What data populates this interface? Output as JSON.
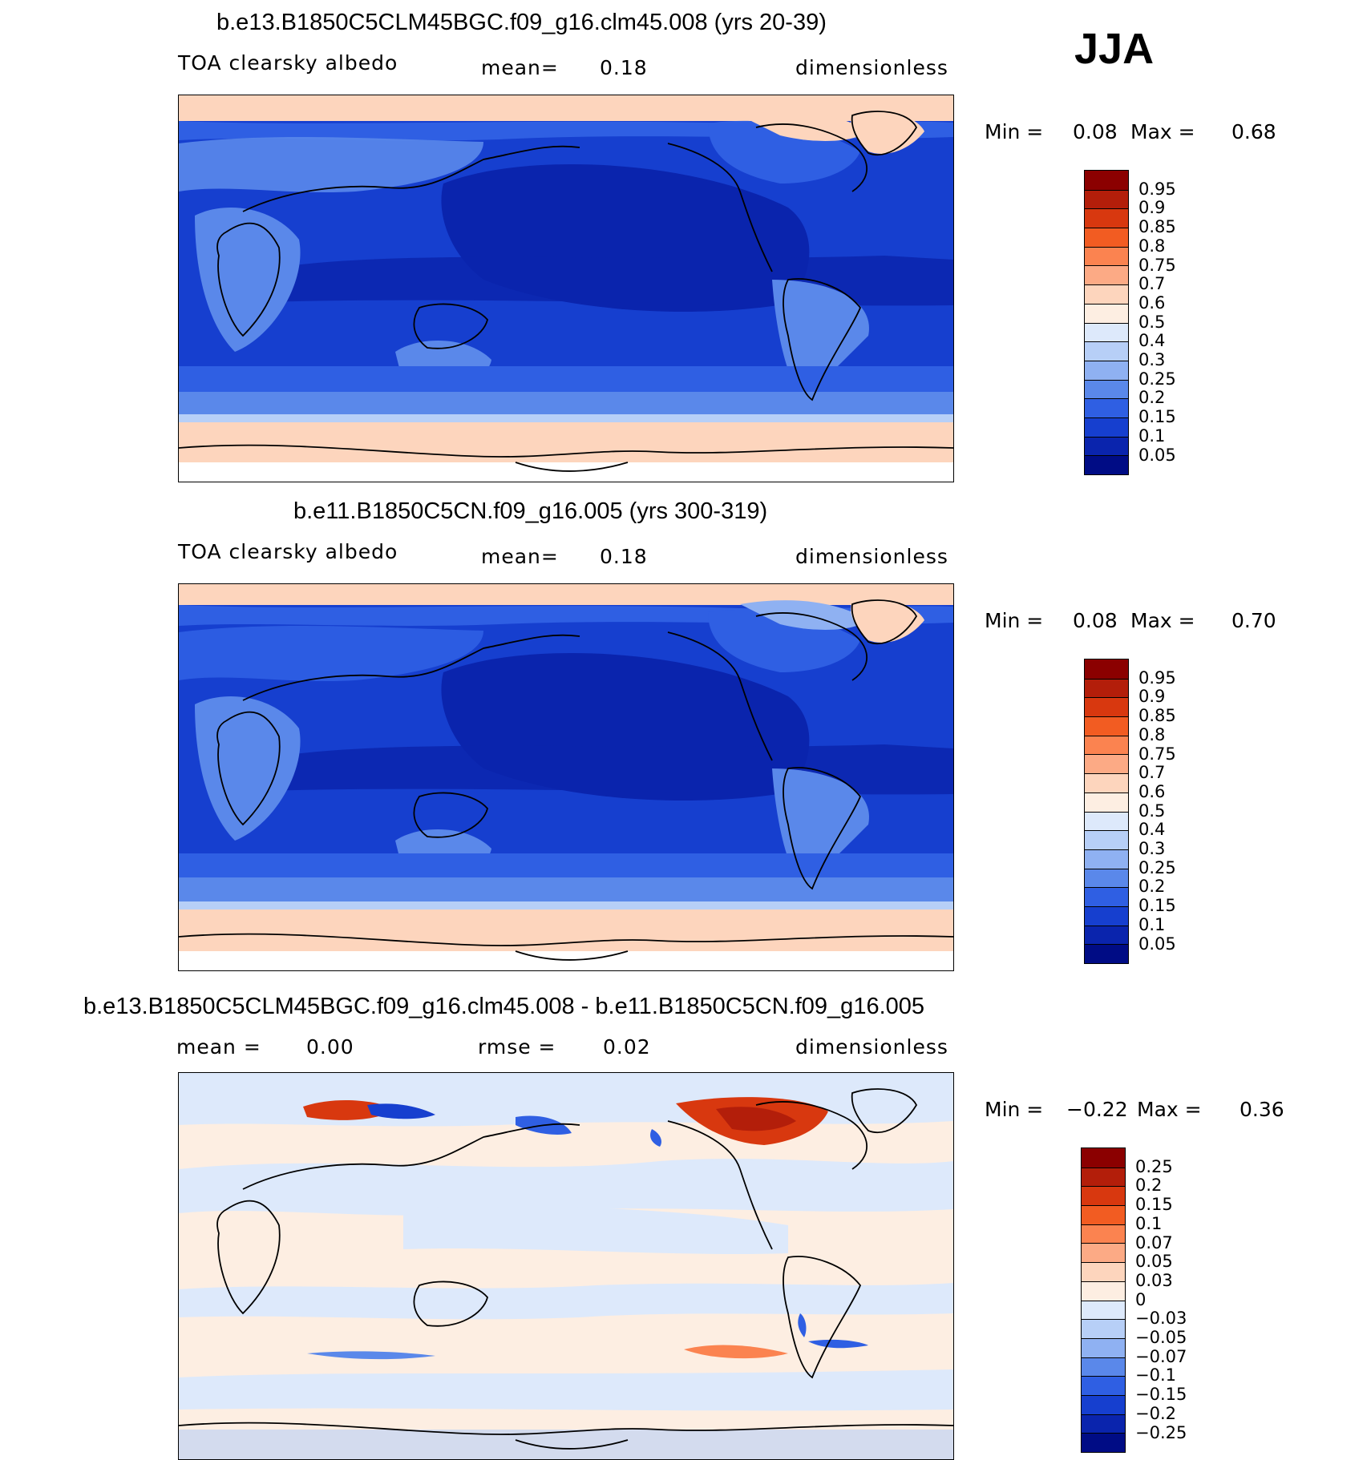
{
  "season": "JJA",
  "panels": [
    {
      "title": "b.e13.B1850C5CLM45BGC.f09_g16.clm45.008 (yrs 20-39)",
      "variable": "TOA clearsky albedo",
      "stat_label": "mean=",
      "stat_value": "0.18",
      "units": "dimensionless",
      "min_label": "Min =",
      "min_value": "0.08",
      "max_label": "Max =",
      "max_value": "0.68",
      "levels": [
        "0.95",
        "0.9",
        "0.85",
        "0.8",
        "0.75",
        "0.7",
        "0.6",
        "0.5",
        "0.4",
        "0.3",
        "0.25",
        "0.2",
        "0.15",
        "0.1",
        "0.05"
      ]
    },
    {
      "title": "b.e11.B1850C5CN.f09_g16.005 (yrs 300-319)",
      "variable": "TOA clearsky albedo",
      "stat_label": "mean=",
      "stat_value": "0.18",
      "units": "dimensionless",
      "min_label": "Min =",
      "min_value": "0.08",
      "max_label": "Max =",
      "max_value": "0.70",
      "levels": [
        "0.95",
        "0.9",
        "0.85",
        "0.8",
        "0.75",
        "0.7",
        "0.6",
        "0.5",
        "0.4",
        "0.3",
        "0.25",
        "0.2",
        "0.15",
        "0.1",
        "0.05"
      ]
    },
    {
      "title": "b.e13.B1850C5CLM45BGC.f09_g16.clm45.008 - b.e11.B1850C5CN.f09_g16.005",
      "stat_label": "mean =",
      "stat_value": "0.00",
      "rmse_label": "rmse =",
      "rmse_value": "0.02",
      "units": "dimensionless",
      "min_label": "Min =",
      "min_value": "−0.22",
      "max_label": "Max =",
      "max_value": "0.36",
      "levels": [
        "0.25",
        "0.2",
        "0.15",
        "0.1",
        "0.07",
        "0.05",
        "0.03",
        "0",
        "−0.03",
        "−0.05",
        "−0.07",
        "−0.1",
        "−0.15",
        "−0.2",
        "−0.25"
      ]
    }
  ],
  "colors": {
    "abs_scale": [
      "#8b0000",
      "#b31e0a",
      "#d8380f",
      "#f25c22",
      "#fb8350",
      "#fcaa85",
      "#fdd5bd",
      "#fdeee2",
      "#dde9fb",
      "#b7cff7",
      "#8fb1f2",
      "#5a88ea",
      "#2f5fe3",
      "#163fcf",
      "#0a24ad",
      "#000c85"
    ],
    "diff_scale": [
      "#8b0000",
      "#b31e0a",
      "#d8380f",
      "#f25c22",
      "#fb8350",
      "#fcaa85",
      "#fdd5bd",
      "#fdeee2",
      "#dde9fb",
      "#b7cff7",
      "#8fb1f2",
      "#5a88ea",
      "#2f5fe3",
      "#163fcf",
      "#0a24ad",
      "#000c85"
    ]
  }
}
